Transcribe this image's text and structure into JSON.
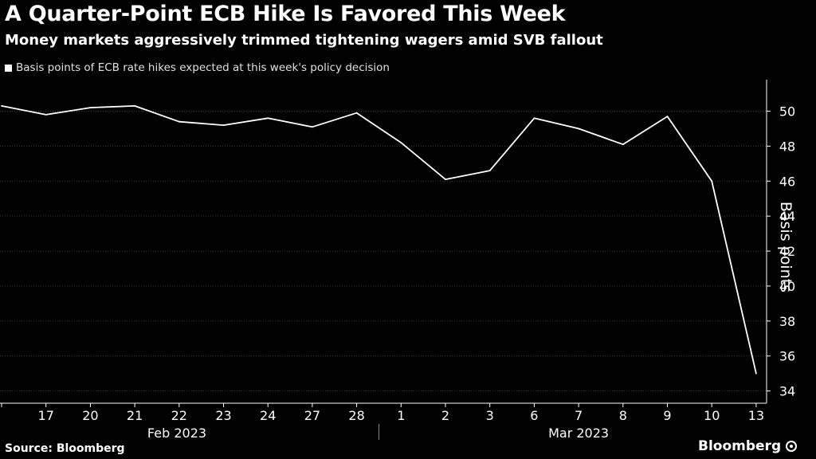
{
  "header": {
    "title": "A Quarter-Point ECB Hike Is Favored This Week",
    "subtitle": "Money markets aggressively trimmed tightening wagers amid SVB fallout"
  },
  "footer": {
    "source": "Source: Bloomberg",
    "brand": "Bloomberg"
  },
  "colors": {
    "background": "#000000",
    "line": "#ffffff",
    "grid": "#3a3a3a"
  },
  "chart_data": {
    "type": "line",
    "title": "A Quarter-Point ECB Hike Is Favored This Week",
    "subtitle": "Money markets aggressively trimmed tightening wagers amid SVB fallout",
    "xlabel": "",
    "ylabel": "Basis points",
    "y_axis_side": "right",
    "ylim": [
      33.3,
      51.8
    ],
    "yticks": [
      34,
      36,
      38,
      40,
      42,
      44,
      46,
      48,
      50
    ],
    "grid": "horizontal",
    "legend_placement": "top-left",
    "x": [
      "2023-02-16",
      "2023-02-17",
      "2023-02-20",
      "2023-02-21",
      "2023-02-22",
      "2023-02-23",
      "2023-02-24",
      "2023-02-27",
      "2023-02-28",
      "2023-03-01",
      "2023-03-02",
      "2023-03-03",
      "2023-03-06",
      "2023-03-07",
      "2023-03-08",
      "2023-03-09",
      "2023-03-10",
      "2023-03-13"
    ],
    "tick_labels": [
      "17",
      "20",
      "21",
      "22",
      "23",
      "24",
      "27",
      "28",
      "1",
      "2",
      "3",
      "6",
      "7",
      "8",
      "9",
      "10",
      "13"
    ],
    "month_labels": [
      "Feb 2023",
      "Mar 2023"
    ],
    "series": [
      {
        "name": "Basis points of ECB rate hikes expected at this week's policy decision",
        "values": [
          50.3,
          49.8,
          50.2,
          50.3,
          49.4,
          49.2,
          49.6,
          49.1,
          49.9,
          48.2,
          46.1,
          46.6,
          49.6,
          49.0,
          48.1,
          49.7,
          46.0,
          35.0
        ]
      }
    ]
  }
}
